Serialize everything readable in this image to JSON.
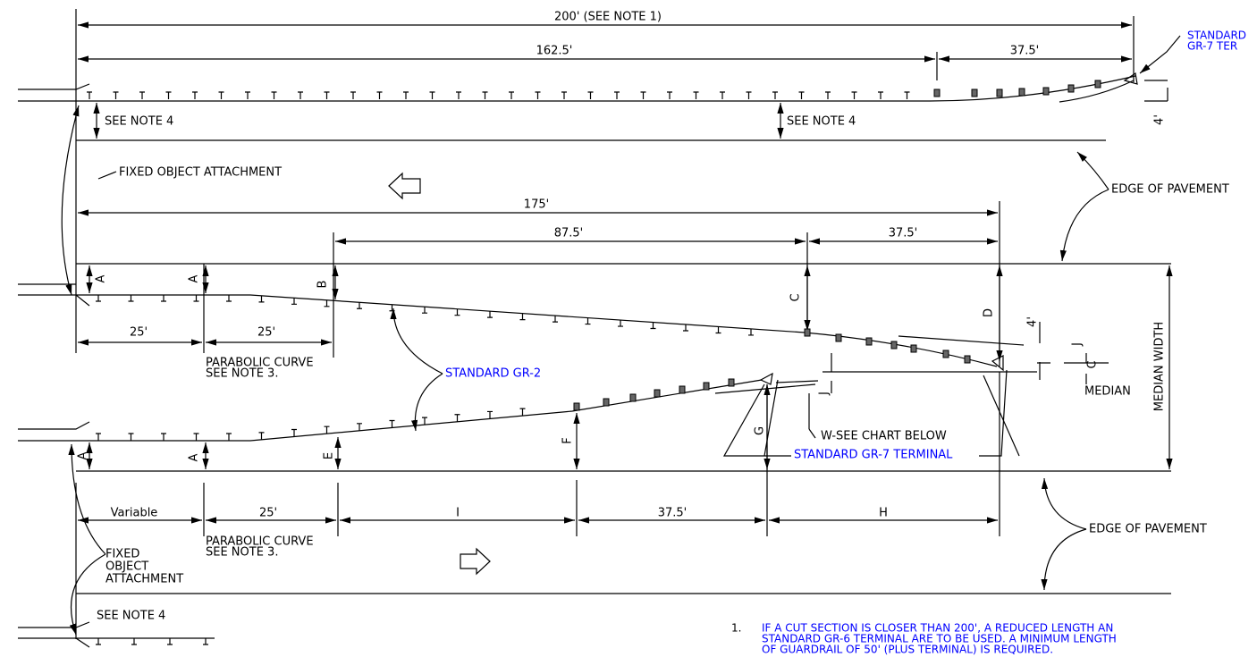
{
  "top": {
    "dim_overall": "200' (SEE NOTE 1)",
    "dim_guardrail": "162.5'",
    "dim_terminal": "37.5'",
    "terminal_label": [
      "STANDARD",
      "GR-7 TER"
    ],
    "note_refs": [
      "SEE NOTE 4",
      "SEE NOTE 4"
    ],
    "offset": "4'",
    "fixed_object": "FIXED OBJECT ATTACHMENT",
    "edge": "EDGE OF PAVEMENT"
  },
  "median": {
    "dim_overall": "175'",
    "dim_guardrail": "87.5'",
    "dim_terminal": "37.5'",
    "offsets_upper": [
      "A",
      "A",
      "B",
      "C",
      "D"
    ],
    "dim_left": [
      "25'",
      "25'"
    ],
    "curve_note": [
      "PARABOLIC CURVE",
      "SEE NOTE 3."
    ],
    "gr2": "STANDARD GR-2",
    "offset_4": "4'",
    "j_labels": [
      "J",
      "J"
    ],
    "c_label": "C",
    "median": "MEDIAN",
    "median_width": "MEDIAN WIDTH",
    "w_note": "W-SEE CHART BELOW",
    "gr7": "STANDARD GR-7 TERMINAL",
    "offsets_lower": [
      "A",
      "A",
      "E",
      "F",
      "G"
    ]
  },
  "bottom": {
    "dims": [
      "Variable",
      "25'",
      "I",
      "37.5'",
      "H"
    ],
    "fixed_object": [
      "FIXED",
      "OBJECT",
      "ATTACHMENT"
    ],
    "curve_note": [
      "PARABOLIC CURVE",
      "SEE NOTE 3."
    ],
    "note_ref": "SEE NOTE 4",
    "edge": "EDGE OF PAVEMENT"
  },
  "notes": [
    {
      "number": "1.",
      "lines": [
        "IF A CUT SECTION IS CLOSER THAN 200', A REDUCED LENGTH AN",
        "STANDARD GR-6 TERMINAL ARE TO BE USED. A MINIMUM LENGTH",
        "OF GUARDRAIL OF 50' (PLUS TERMINAL) IS REQUIRED."
      ]
    }
  ]
}
